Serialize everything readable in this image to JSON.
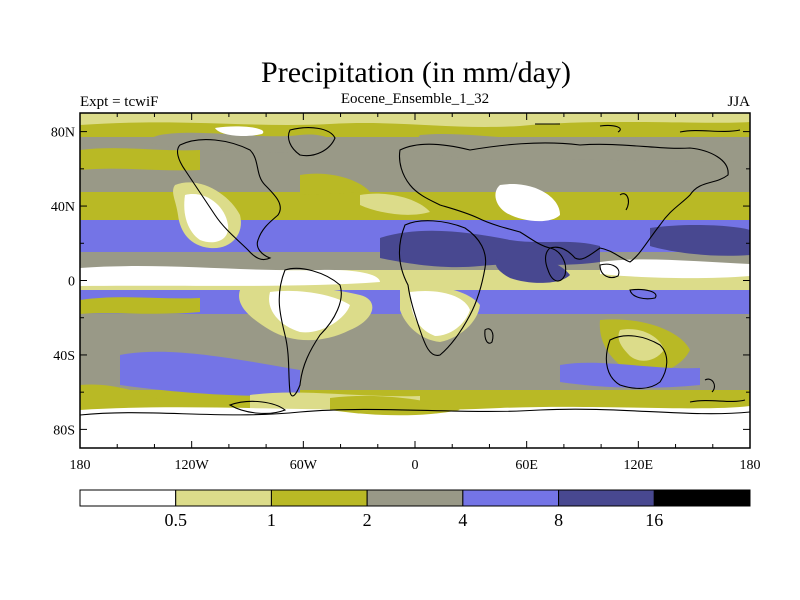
{
  "title": "Precipitation (in mm/day)",
  "subtitle_left": "Expt = tcwiF",
  "subtitle_center": "Eocene_Ensemble_1_32",
  "subtitle_right": "JJA",
  "map": {
    "projection": "cylindrical equidistant",
    "lon_range": [
      -180,
      180
    ],
    "lat_range": [
      -90,
      90
    ]
  },
  "axes": {
    "x_ticks": [
      {
        "value": -180,
        "label": "180"
      },
      {
        "value": -120,
        "label": "120W"
      },
      {
        "value": -60,
        "label": "60W"
      },
      {
        "value": 0,
        "label": "0"
      },
      {
        "value": 60,
        "label": "60E"
      },
      {
        "value": 120,
        "label": "120E"
      },
      {
        "value": 180,
        "label": "180"
      }
    ],
    "y_ticks": [
      {
        "value": 80,
        "label": "80N"
      },
      {
        "value": 40,
        "label": "40N"
      },
      {
        "value": 0,
        "label": "0"
      },
      {
        "value": -40,
        "label": "40S"
      },
      {
        "value": -80,
        "label": "80S"
      }
    ]
  },
  "colorbar": {
    "colors": [
      "#ffffff",
      "#dcdc8a",
      "#b9b925",
      "#999987",
      "#7474e6",
      "#484890",
      "#000000"
    ],
    "labels": [
      "0.5",
      "1",
      "2",
      "4",
      "8",
      "16"
    ]
  },
  "chart_data": {
    "type": "heatmap",
    "title": "Precipitation (in mm/day)",
    "levels": [
      0.5,
      1,
      2,
      4,
      8,
      16
    ],
    "zonal_bands_approx": [
      {
        "lat_from": 90,
        "lat_to": 75,
        "level_index": 2
      },
      {
        "lat_from": 75,
        "lat_to": 45,
        "level_index": 3
      },
      {
        "lat_from": 45,
        "lat_to": 30,
        "level_index": 2
      },
      {
        "lat_from": 30,
        "lat_to": 15,
        "level_index": 4
      },
      {
        "lat_from": 15,
        "lat_to": 5,
        "level_index": 3
      },
      {
        "lat_from": 5,
        "lat_to": -5,
        "level_index": 1
      },
      {
        "lat_from": -5,
        "lat_to": -15,
        "level_index": 4
      },
      {
        "lat_from": -15,
        "lat_to": -30,
        "level_index": 3
      },
      {
        "lat_from": -30,
        "lat_to": -55,
        "level_index": 3
      },
      {
        "lat_from": -55,
        "lat_to": -70,
        "level_index": 2
      },
      {
        "lat_from": -70,
        "lat_to": -90,
        "level_index": 0
      }
    ]
  }
}
